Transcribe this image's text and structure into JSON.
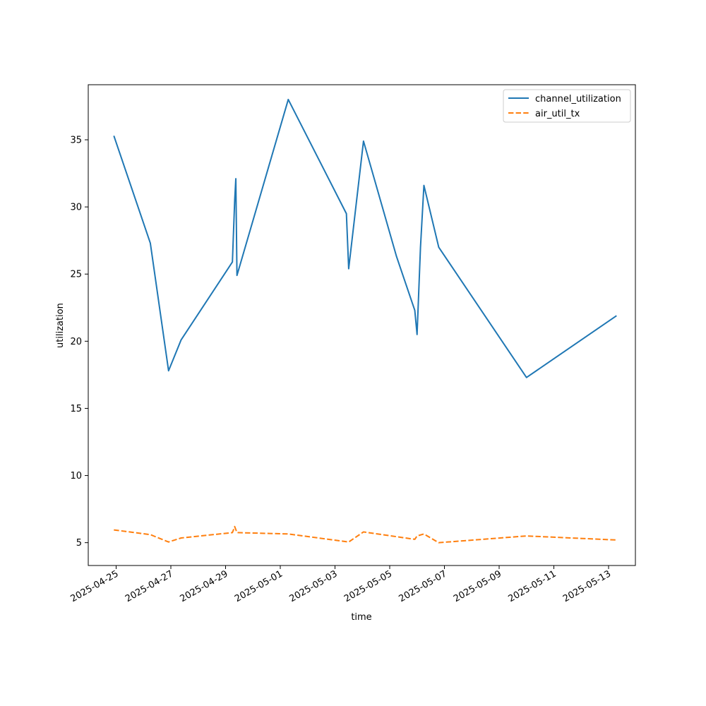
{
  "chart_data": {
    "type": "line",
    "xlabel": "time",
    "ylabel": "utilization",
    "x_type": "datetime",
    "xlim": [
      "2024-04-23T20:00:00",
      "2025-05-14T06:00:00"
    ],
    "ylim": [
      3.3,
      39.1
    ],
    "y_ticks": [
      5,
      10,
      15,
      20,
      25,
      30,
      35
    ],
    "x_ticks": [
      "2025-04-25",
      "2025-04-27",
      "2025-04-29",
      "2025-05-01",
      "2025-05-03",
      "2025-05-05",
      "2025-05-07",
      "2025-05-09",
      "2025-05-11",
      "2025-05-13"
    ],
    "grid": false,
    "legend_position": "top-right",
    "series": [
      {
        "name": "channel_utilization",
        "color": "#1f77b4",
        "dash": "solid",
        "points": [
          [
            "2025-04-24T22:00:00",
            35.3
          ],
          [
            "2025-04-26T06:00:00",
            27.3
          ],
          [
            "2025-04-26T22:00:00",
            17.8
          ],
          [
            "2025-04-27T09:00:00",
            20.1
          ],
          [
            "2025-04-29T06:00:00",
            25.9
          ],
          [
            "2025-04-29T08:00:00",
            30.5
          ],
          [
            "2025-04-29T09:00:00",
            32.1
          ],
          [
            "2025-04-29T10:00:00",
            24.9
          ],
          [
            "2025-05-01T07:00:00",
            38.0
          ],
          [
            "2025-05-03T10:00:00",
            29.5
          ],
          [
            "2025-05-03T12:00:00",
            25.4
          ],
          [
            "2025-05-04T01:00:00",
            34.9
          ],
          [
            "2025-05-05T06:00:00",
            26.3
          ],
          [
            "2025-05-05T22:00:00",
            22.3
          ],
          [
            "2025-05-06T00:00:00",
            20.5
          ],
          [
            "2025-05-06T03:00:00",
            27.0
          ],
          [
            "2025-05-06T06:00:00",
            31.6
          ],
          [
            "2025-05-06T19:00:00",
            27.0
          ],
          [
            "2025-05-10T00:00:00",
            17.3
          ],
          [
            "2025-05-13T07:00:00",
            21.9
          ]
        ]
      },
      {
        "name": "air_util_tx",
        "color": "#ff7f0e",
        "dash": "dashed",
        "points": [
          [
            "2025-04-24T22:00:00",
            5.95
          ],
          [
            "2025-04-26T06:00:00",
            5.6
          ],
          [
            "2025-04-26T22:00:00",
            5.05
          ],
          [
            "2025-04-27T09:00:00",
            5.35
          ],
          [
            "2025-04-29T06:00:00",
            5.75
          ],
          [
            "2025-04-29T08:00:00",
            6.2
          ],
          [
            "2025-04-29T10:00:00",
            5.75
          ],
          [
            "2025-05-01T07:00:00",
            5.65
          ],
          [
            "2025-05-03T12:00:00",
            5.05
          ],
          [
            "2025-05-04T01:00:00",
            5.8
          ],
          [
            "2025-05-05T22:00:00",
            5.25
          ],
          [
            "2025-05-06T00:00:00",
            5.5
          ],
          [
            "2025-05-06T06:00:00",
            5.65
          ],
          [
            "2025-05-06T19:00:00",
            5.0
          ],
          [
            "2025-05-10T00:00:00",
            5.5
          ],
          [
            "2025-05-13T07:00:00",
            5.2
          ]
        ]
      }
    ]
  }
}
